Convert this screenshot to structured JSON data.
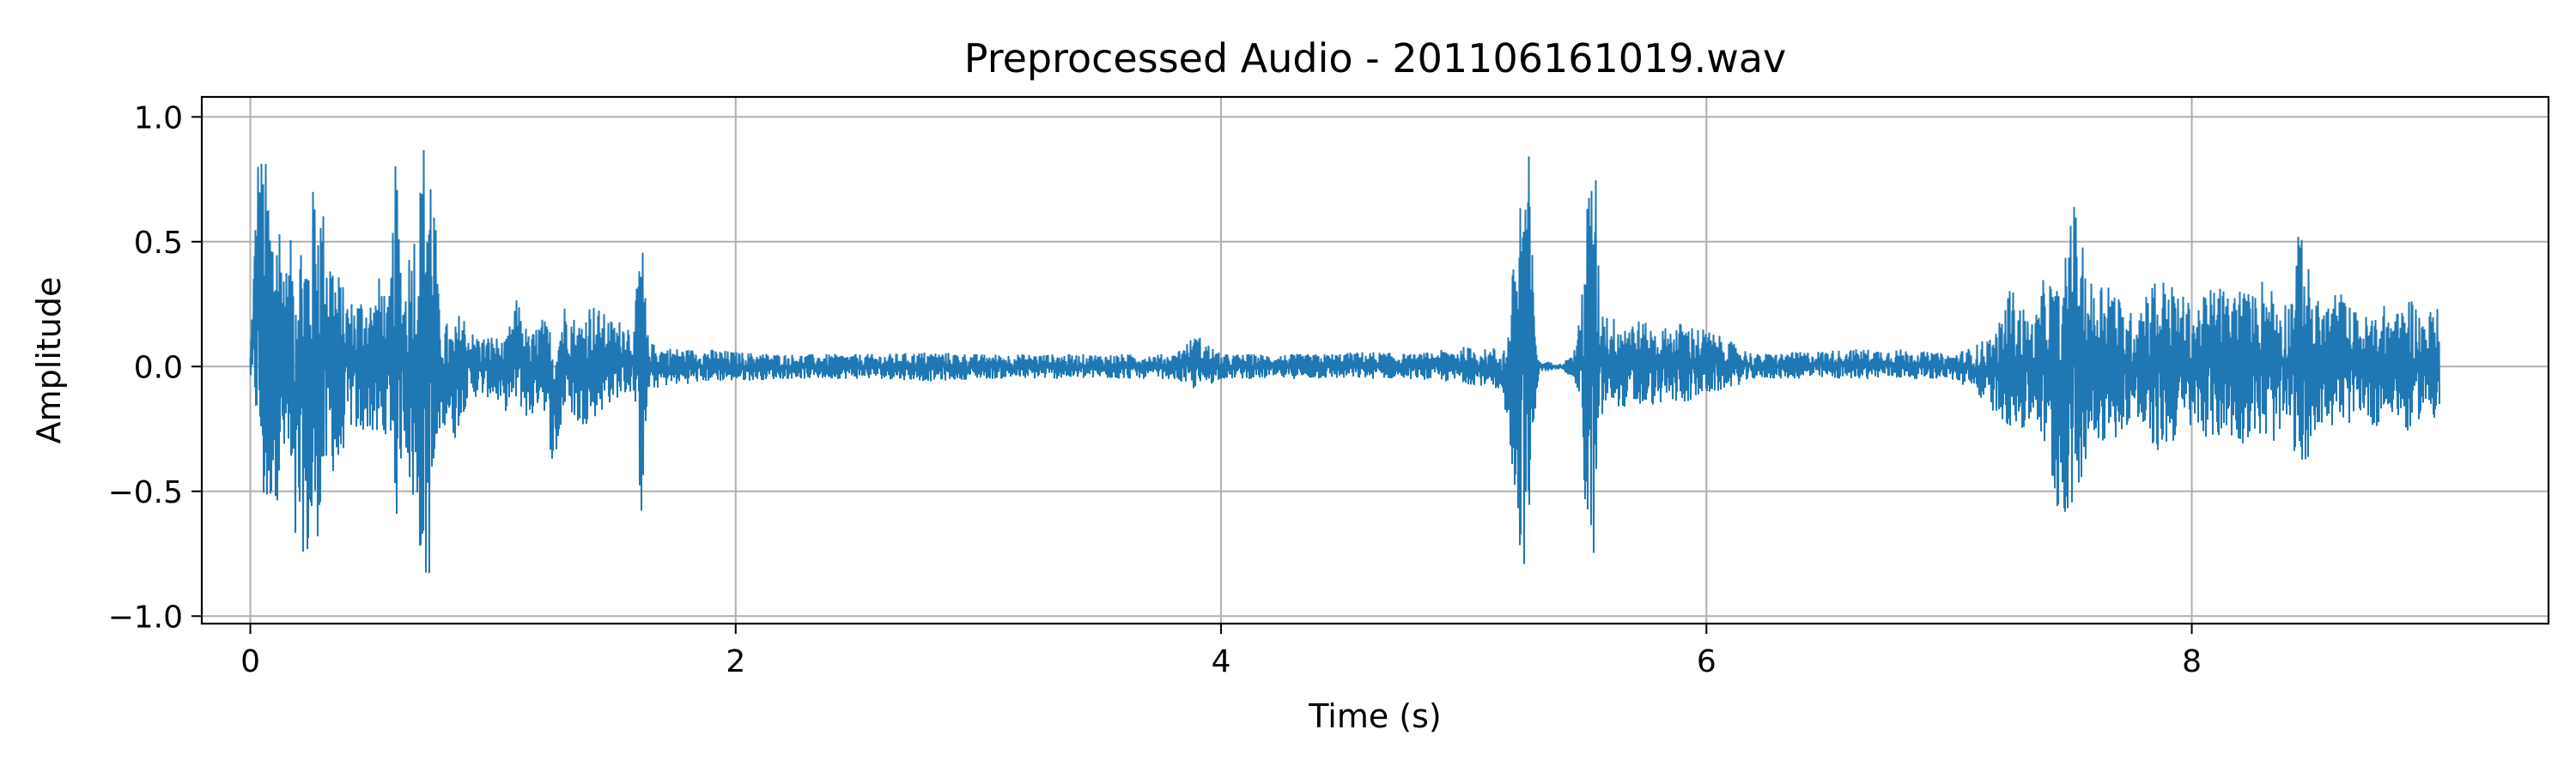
{
  "chart_data": {
    "type": "line",
    "title": "Preprocessed Audio - 201106161019.wav",
    "xlabel": "Time (s)",
    "ylabel": "Amplitude",
    "xlim": [
      -0.2,
      9.47
    ],
    "ylim": [
      -1.03,
      1.08
    ],
    "grid": true,
    "x_ticks": [
      {
        "value": 0,
        "label": "0"
      },
      {
        "value": 2,
        "label": "2"
      },
      {
        "value": 4,
        "label": "4"
      },
      {
        "value": 6,
        "label": "6"
      },
      {
        "value": 8,
        "label": "8"
      }
    ],
    "y_ticks": [
      {
        "value": 1.0,
        "label": "1.0"
      },
      {
        "value": 0.5,
        "label": "0.5"
      },
      {
        "value": 0.0,
        "label": "0.0"
      },
      {
        "value": -0.5,
        "label": "−0.5"
      },
      {
        "value": -1.0,
        "label": "−1.0"
      }
    ],
    "series_color": "#1f77b4",
    "series": [
      {
        "x": [
          0.0,
          0.03,
          0.06,
          0.09,
          0.12,
          0.15,
          0.18,
          0.21,
          0.24,
          0.27,
          0.3,
          0.33,
          0.36,
          0.39,
          0.42,
          0.45,
          0.48,
          0.51,
          0.54,
          0.57,
          0.6,
          0.63,
          0.66,
          0.69,
          0.72,
          0.75,
          0.78,
          0.81,
          0.84,
          0.87,
          0.9,
          0.95,
          1.0,
          1.05,
          1.1,
          1.15,
          1.2,
          1.25,
          1.3,
          1.35,
          1.4,
          1.45,
          1.5,
          1.55,
          1.58,
          1.61,
          1.64,
          1.7,
          1.8,
          1.9,
          2.0,
          2.2,
          2.4,
          2.6,
          2.8,
          3.0,
          3.2,
          3.4,
          3.6,
          3.8,
          3.9,
          4.0,
          4.2,
          4.4,
          4.6,
          4.8,
          5.0,
          5.1,
          5.18,
          5.22,
          5.25,
          5.27,
          5.29,
          5.31,
          5.35,
          5.4,
          5.45,
          5.48,
          5.5,
          5.52,
          5.54,
          5.56,
          5.6,
          5.7,
          5.8,
          5.9,
          6.0,
          6.2,
          6.4,
          6.6,
          6.8,
          7.0,
          7.1,
          7.2,
          7.25,
          7.3,
          7.35,
          7.4,
          7.44,
          7.47,
          7.5,
          7.55,
          7.6,
          7.65,
          7.7,
          7.75,
          7.8,
          7.85,
          7.9,
          7.95,
          8.0,
          8.05,
          8.1,
          8.15,
          8.2,
          8.25,
          8.3,
          8.35,
          8.4,
          8.45,
          8.5,
          8.55,
          8.6,
          8.65,
          8.7,
          8.75,
          8.8,
          8.85,
          8.9,
          8.95,
          9.0,
          9.02
        ],
        "max": [
          0.05,
          0.88,
          0.86,
          0.63,
          0.65,
          0.4,
          0.6,
          0.58,
          0.57,
          0.82,
          0.65,
          0.5,
          0.4,
          0.3,
          0.27,
          0.3,
          0.3,
          0.28,
          0.4,
          0.22,
          0.85,
          0.3,
          0.55,
          0.65,
          1.0,
          0.9,
          0.2,
          0.18,
          0.15,
          0.25,
          0.15,
          0.12,
          0.13,
          0.1,
          0.28,
          0.12,
          0.2,
          0.15,
          0.27,
          0.18,
          0.27,
          0.22,
          0.18,
          0.2,
          0.13,
          0.6,
          0.1,
          0.08,
          0.07,
          0.07,
          0.06,
          0.05,
          0.05,
          0.05,
          0.06,
          0.05,
          0.05,
          0.05,
          0.05,
          0.05,
          0.13,
          0.05,
          0.05,
          0.05,
          0.06,
          0.05,
          0.08,
          0.07,
          0.1,
          0.62,
          0.97,
          0.85,
          0.25,
          0.02,
          0.02,
          0.01,
          0.05,
          0.2,
          0.62,
          0.78,
          0.9,
          0.3,
          0.2,
          0.2,
          0.15,
          0.18,
          0.15,
          0.05,
          0.06,
          0.07,
          0.07,
          0.05,
          0.08,
          0.15,
          0.33,
          0.25,
          0.18,
          0.4,
          0.33,
          0.3,
          0.75,
          0.48,
          0.3,
          0.42,
          0.28,
          0.22,
          0.32,
          0.37,
          0.35,
          0.3,
          0.25,
          0.28,
          0.35,
          0.3,
          0.33,
          0.29,
          0.38,
          0.3,
          0.27,
          0.6,
          0.28,
          0.25,
          0.32,
          0.25,
          0.2,
          0.22,
          0.25,
          0.22,
          0.3,
          0.2,
          0.25,
          0.22,
          0.22,
          0.2
        ],
        "min": [
          -0.05,
          -0.32,
          -0.73,
          -0.52,
          -0.55,
          -0.38,
          -0.86,
          -0.72,
          -0.85,
          -0.72,
          -0.55,
          -0.4,
          -0.5,
          -0.28,
          -0.25,
          -0.3,
          -0.25,
          -0.3,
          -0.35,
          -0.2,
          -0.65,
          -0.25,
          -0.55,
          -0.7,
          -0.92,
          -0.8,
          -0.25,
          -0.23,
          -0.3,
          -0.2,
          -0.13,
          -0.12,
          -0.13,
          -0.18,
          -0.15,
          -0.23,
          -0.12,
          -0.43,
          -0.15,
          -0.25,
          -0.22,
          -0.18,
          -0.13,
          -0.12,
          -0.1,
          -0.63,
          -0.1,
          -0.08,
          -0.07,
          -0.06,
          -0.06,
          -0.05,
          -0.05,
          -0.05,
          -0.06,
          -0.05,
          -0.05,
          -0.05,
          -0.05,
          -0.05,
          -0.1,
          -0.05,
          -0.05,
          -0.05,
          -0.05,
          -0.05,
          -0.07,
          -0.08,
          -0.2,
          -0.68,
          -0.82,
          -0.85,
          -0.2,
          -0.02,
          -0.02,
          -0.01,
          -0.05,
          -0.15,
          -0.65,
          -0.83,
          -0.75,
          -0.25,
          -0.15,
          -0.18,
          -0.15,
          -0.15,
          -0.12,
          -0.05,
          -0.05,
          -0.05,
          -0.05,
          -0.05,
          -0.1,
          -0.2,
          -0.25,
          -0.28,
          -0.2,
          -0.38,
          -0.58,
          -0.6,
          -0.62,
          -0.42,
          -0.28,
          -0.32,
          -0.27,
          -0.22,
          -0.3,
          -0.35,
          -0.33,
          -0.28,
          -0.25,
          -0.28,
          -0.3,
          -0.28,
          -0.32,
          -0.26,
          -0.32,
          -0.3,
          -0.25,
          -0.48,
          -0.27,
          -0.22,
          -0.28,
          -0.23,
          -0.18,
          -0.25,
          -0.2,
          -0.22,
          -0.28,
          -0.18,
          -0.22,
          -0.2,
          -0.2,
          -0.18
        ]
      }
    ]
  }
}
